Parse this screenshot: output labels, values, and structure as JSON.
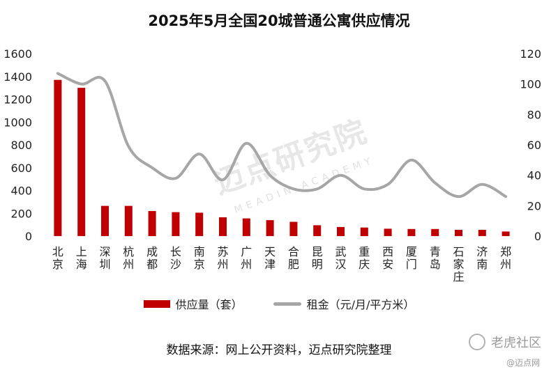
{
  "chart_data": {
    "type": "bar",
    "title": "2025年5月全国20城普通公寓供应情况",
    "categories": [
      "北京",
      "上海",
      "深圳",
      "杭州",
      "成都",
      "长沙",
      "南京",
      "苏州",
      "广州",
      "天津",
      "合肥",
      "昆明",
      "武汉",
      "重庆",
      "西安",
      "厦门",
      "青岛",
      "石家庄",
      "济南",
      "郑州"
    ],
    "series": [
      {
        "name": "供应量（套）",
        "type": "bar",
        "axis": "left",
        "color": "#c00000",
        "values": [
          1370,
          1300,
          265,
          265,
          220,
          210,
          205,
          165,
          155,
          140,
          125,
          95,
          80,
          75,
          65,
          62,
          62,
          55,
          55,
          40
        ]
      },
      {
        "name": "租金（元/月/平方米）",
        "type": "line",
        "axis": "right",
        "color": "#a6a6a6",
        "values": [
          107,
          100,
          102,
          59,
          45,
          38,
          54,
          37,
          61,
          40,
          31,
          31,
          40,
          31,
          34,
          50,
          35,
          26,
          34,
          26
        ]
      }
    ],
    "ylim_left": [
      0,
      1600
    ],
    "yticks_left": [
      0,
      200,
      400,
      600,
      800,
      1000,
      1200,
      1400,
      1600
    ],
    "ylim_right": [
      0,
      120
    ],
    "yticks_right": [
      0,
      20,
      40,
      60,
      80,
      100,
      120
    ],
    "grid": false,
    "legend": "bottom"
  },
  "legend": {
    "bar_label": "供应量（套）",
    "line_label": "租金（元/月/平方米）"
  },
  "source": "数据来源：网上公开资料，迈点研究院整理",
  "watermark": {
    "main": "迈点研究院",
    "sub": "MEADIN ACADEMY"
  },
  "corner": {
    "brand": "老虎社区",
    "sub": "@迈点网"
  }
}
